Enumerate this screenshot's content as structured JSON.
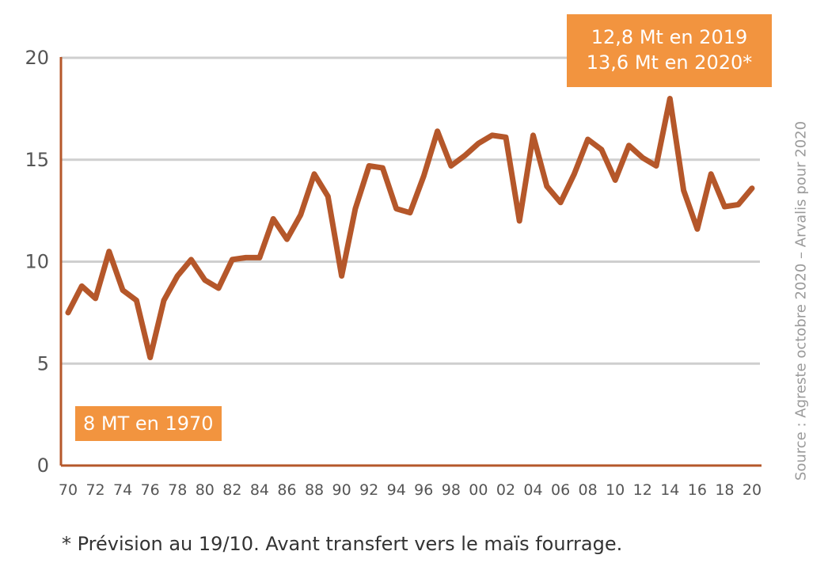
{
  "chart_data": {
    "type": "line",
    "title": "",
    "xlabel": "",
    "ylabel": "",
    "ylim": [
      0,
      20
    ],
    "yticks": [
      "0",
      "5",
      "10",
      "15",
      "20"
    ],
    "x_tick_labels": [
      "70",
      "72",
      "74",
      "76",
      "78",
      "80",
      "82",
      "84",
      "86",
      "88",
      "90",
      "92",
      "94",
      "96",
      "98",
      "00",
      "02",
      "04",
      "06",
      "08",
      "10",
      "12",
      "14",
      "16",
      "18",
      "20"
    ],
    "grid": true,
    "series": [
      {
        "color": "#b5572a",
        "x": [
          1970,
          1971,
          1972,
          1973,
          1974,
          1975,
          1976,
          1977,
          1978,
          1979,
          1980,
          1981,
          1982,
          1983,
          1984,
          1985,
          1986,
          1987,
          1988,
          1989,
          1990,
          1991,
          1992,
          1993,
          1994,
          1995,
          1996,
          1997,
          1998,
          1999,
          2000,
          2001,
          2002,
          2003,
          2004,
          2005,
          2006,
          2007,
          2008,
          2009,
          2010,
          2011,
          2012,
          2013,
          2014,
          2015,
          2016,
          2017,
          2018,
          2019,
          2020
        ],
        "values": [
          7.5,
          8.8,
          8.2,
          10.5,
          8.6,
          8.1,
          5.3,
          8.1,
          9.3,
          10.1,
          9.1,
          8.7,
          10.1,
          10.2,
          10.2,
          12.1,
          11.1,
          12.3,
          14.3,
          13.2,
          9.3,
          12.6,
          14.7,
          14.6,
          12.6,
          12.4,
          14.2,
          16.4,
          14.7,
          15.2,
          15.8,
          16.2,
          16.1,
          12.0,
          16.2,
          13.7,
          12.9,
          14.3,
          16.0,
          15.5,
          14.0,
          15.7,
          15.1,
          14.7,
          18.0,
          13.5,
          11.6,
          14.3,
          12.7,
          12.8,
          13.6
        ]
      }
    ],
    "annotations": {
      "start": "8 MT en 1970",
      "end_line1": "12,8 Mt en 2019",
      "end_line2": "13,6 Mt en 2020*"
    },
    "accent_color": "#f2943f",
    "line_color": "#b5572a"
  },
  "source": "Source : Agreste octobre 2020 – Arvalis pour 2020",
  "footnote": "* Prévision au 19/10. Avant transfert vers le maïs fourrage."
}
